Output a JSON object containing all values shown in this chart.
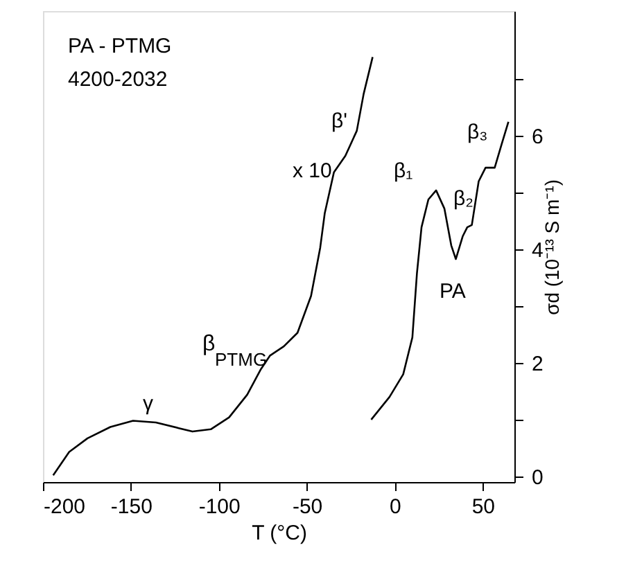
{
  "chart_data": {
    "type": "line",
    "xlabel": "T (°C)",
    "ylabel": "σd (10⁻¹³ S m⁻¹)",
    "xlim": [
      -200,
      68
    ],
    "ylim": [
      -0.1,
      8.2
    ],
    "xticks": [
      -200,
      -150,
      -100,
      -50,
      0,
      50
    ],
    "yticks": [
      0,
      {
        "value": 1,
        "label": null
      },
      2,
      {
        "value": 3,
        "label": null
      },
      4,
      {
        "value": 5,
        "label": null
      },
      6,
      {
        "value": 7,
        "label": null
      }
    ],
    "grid": false,
    "legend": false,
    "line_style": "solid",
    "marker": "none",
    "series": [
      {
        "color": "#000000",
        "x": [
          -194.2,
          -185.1,
          -174.7,
          -161.7,
          -148.8,
          -135.8,
          -122.8,
          -115,
          -104.6,
          -94.2,
          -83.9,
          -76.1,
          -70.9,
          -63.1,
          -55.3,
          -47.6,
          -42.4,
          -39.8,
          -34.6,
          -28.1,
          -21.6,
          -17.7,
          -12.6
        ],
        "values": [
          0.02,
          0.43,
          0.67,
          0.87,
          0.98,
          0.95,
          0.85,
          0.79,
          0.83,
          1.04,
          1.44,
          1.89,
          2.13,
          2.29,
          2.53,
          3.18,
          4.03,
          4.64,
          5.36,
          5.65,
          6.09,
          6.74,
          7.39
        ]
      },
      {
        "color": "#000000",
        "x": [
          -13.4,
          -3,
          4.8,
          10,
          12.6,
          15.2,
          19.1,
          23.5,
          28.2,
          32.1,
          34.7,
          38.6,
          41.2,
          43.8,
          47.7,
          51.6,
          56.8,
          60.7,
          64.6
        ],
        "values": [
          1.0,
          1.4,
          1.8,
          2.45,
          3.58,
          4.39,
          4.88,
          5.04,
          4.72,
          4.07,
          3.83,
          4.23,
          4.39,
          4.43,
          5.2,
          5.44,
          5.44,
          5.85,
          6.25
        ]
      }
    ],
    "annotations": [
      "PA - PTMG",
      "4200-2032",
      "x 10",
      "β'",
      "β$_{PTMG}$",
      "γ",
      "β₁",
      "β₂",
      "β₃",
      "PA"
    ]
  }
}
